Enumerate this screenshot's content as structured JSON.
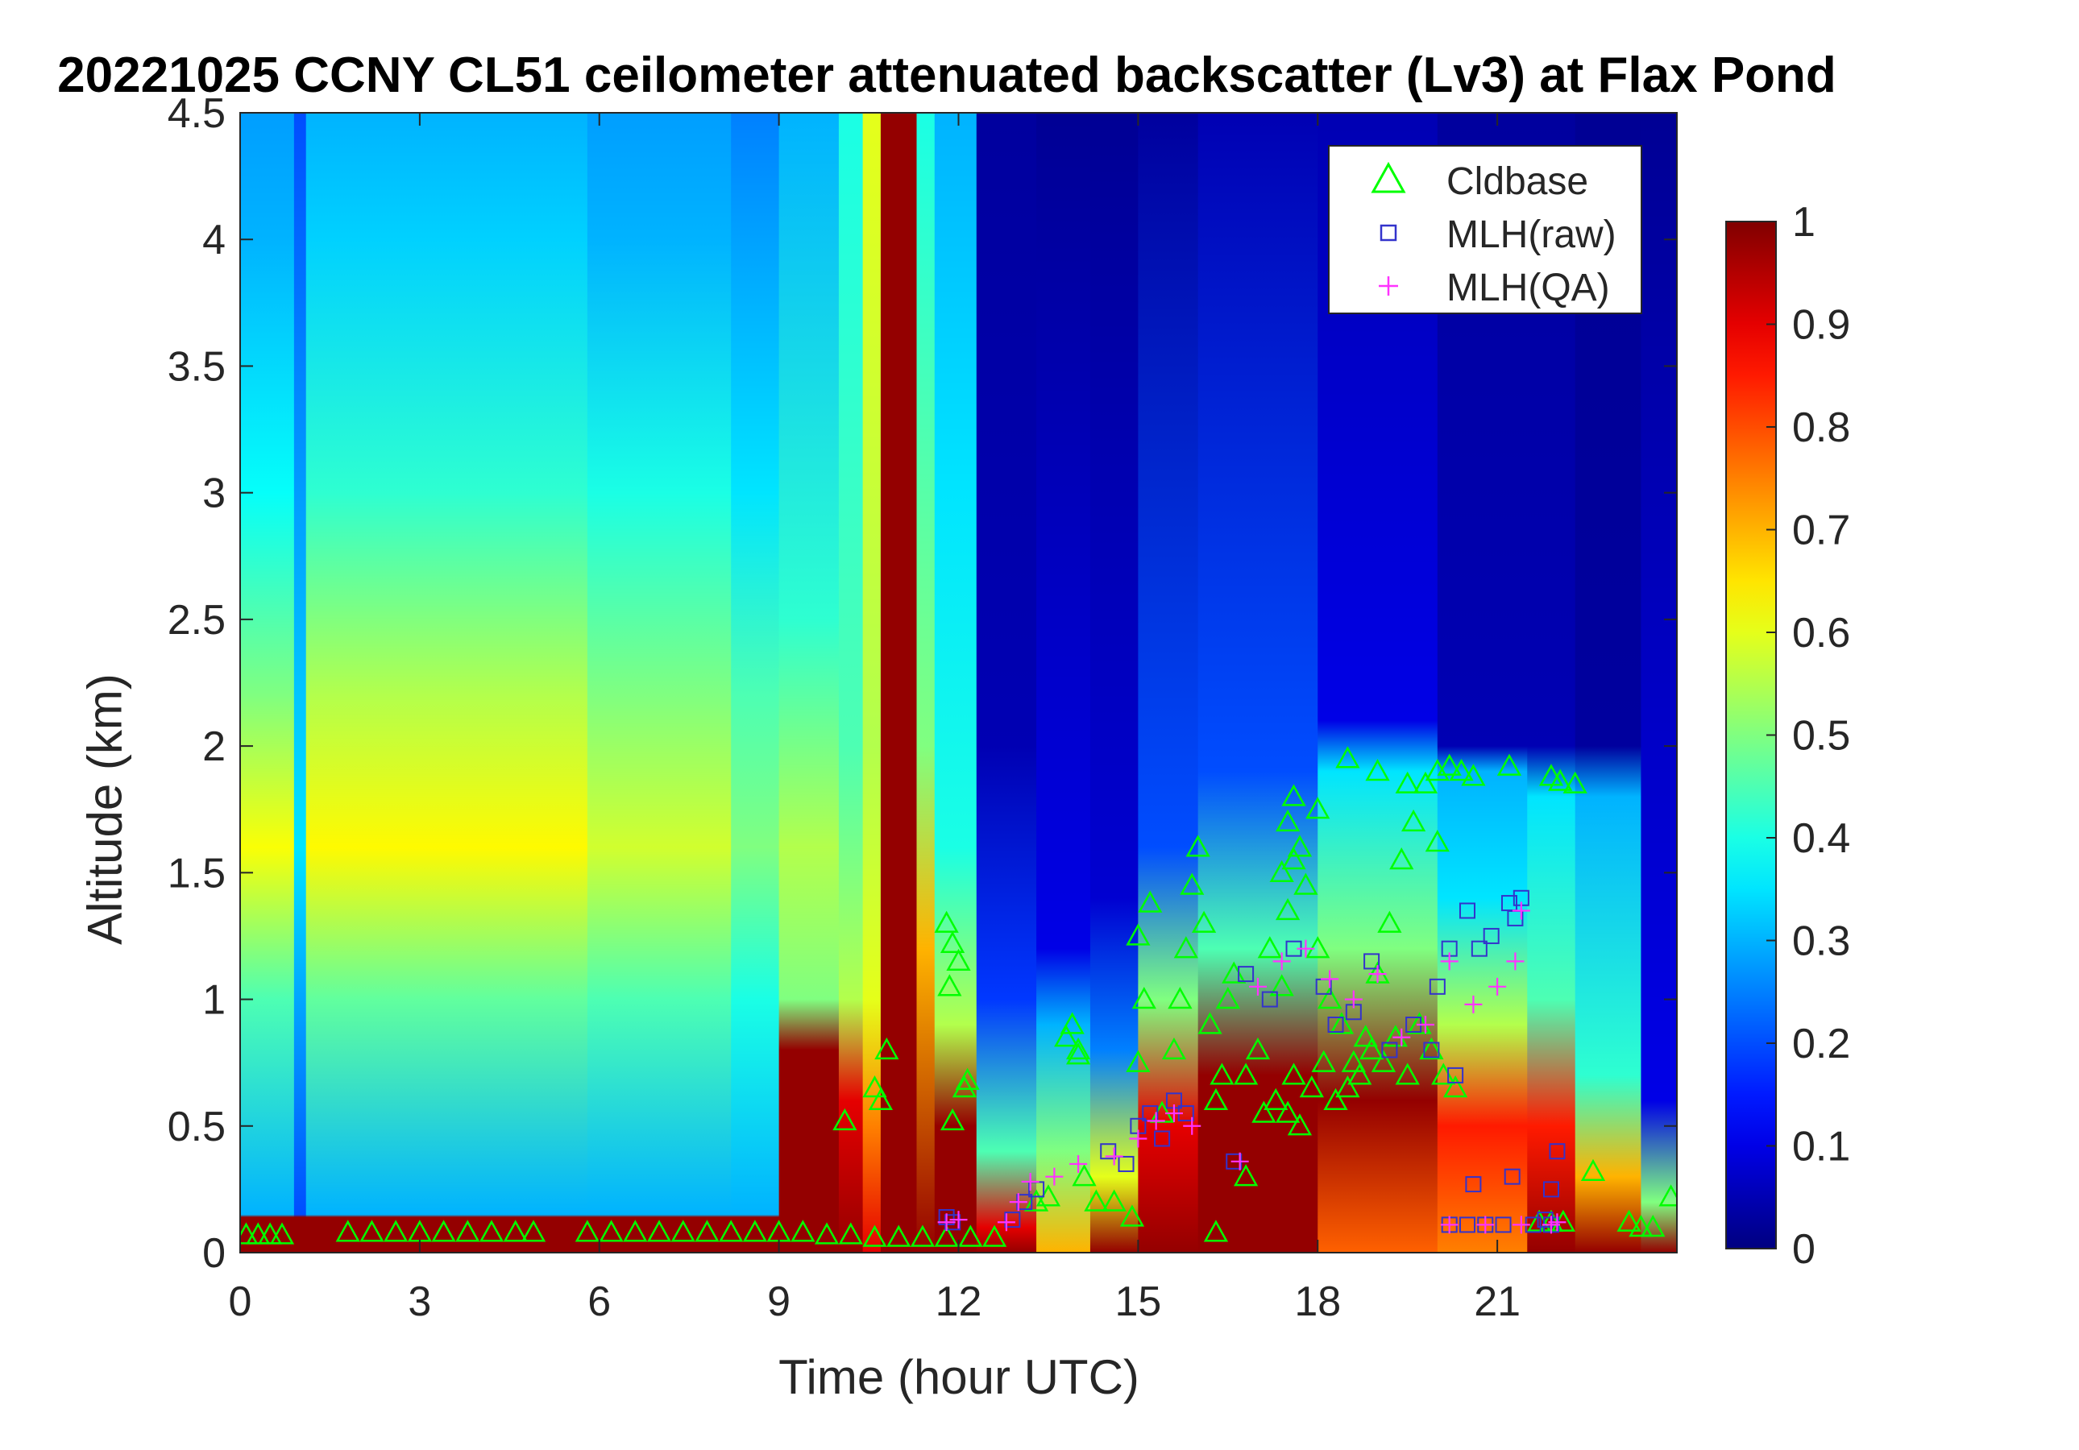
{
  "chart_data": {
    "type": "heatmap",
    "title": "20221025 CCNY CL51 ceilometer attenuated backscatter (Lv3) at Flax Pond",
    "xlabel": "Time (hour UTC)",
    "ylabel": "Altitude (km)",
    "xlim": [
      0,
      24
    ],
    "ylim": [
      0,
      4.5
    ],
    "xticks": [
      0,
      3,
      6,
      9,
      12,
      15,
      18,
      21
    ],
    "xtick_labels": [
      "0",
      "3",
      "6",
      "9",
      "12",
      "15",
      "18",
      "21"
    ],
    "yticks": [
      0,
      0.5,
      1,
      1.5,
      2,
      2.5,
      3,
      3.5,
      4,
      4.5
    ],
    "ytick_labels": [
      "0",
      "0.5",
      "1",
      "1.5",
      "2",
      "2.5",
      "3",
      "3.5",
      "4",
      "4.5"
    ],
    "colorbar": {
      "colormap": "jet",
      "range": [
        0,
        1
      ],
      "ticks": [
        0,
        0.1,
        0.2,
        0.3,
        0.4,
        0.5,
        0.6,
        0.7,
        0.8,
        0.9,
        1
      ],
      "tick_labels": [
        "0",
        "0.1",
        "0.2",
        "0.3",
        "0.4",
        "0.5",
        "0.6",
        "0.7",
        "0.8",
        "0.9",
        "1"
      ]
    },
    "legend": {
      "placement": "top-right",
      "entries": [
        {
          "name": "Cldbase",
          "marker": "triangle",
          "color": "#00ff00"
        },
        {
          "name": "MLH(raw)",
          "marker": "square",
          "color": "#3333cc"
        },
        {
          "name": "MLH(QA)",
          "marker": "plus",
          "color": "#ff33ff"
        }
      ]
    },
    "backscatter_columns": [
      {
        "t0": 0.0,
        "t1": 0.9,
        "profile": [
          [
            0,
            0.98
          ],
          [
            0.14,
            0.98
          ],
          [
            0.15,
            0.3
          ],
          [
            1.0,
            0.45
          ],
          [
            1.6,
            0.62
          ],
          [
            2.2,
            0.5
          ],
          [
            3.0,
            0.38
          ],
          [
            4.0,
            0.3
          ],
          [
            4.5,
            0.28
          ]
        ]
      },
      {
        "t0": 0.9,
        "t1": 1.1,
        "profile": [
          [
            0,
            0.98
          ],
          [
            0.14,
            0.98
          ],
          [
            0.15,
            0.2
          ],
          [
            1.6,
            0.35
          ],
          [
            4.5,
            0.2
          ]
        ]
      },
      {
        "t0": 1.1,
        "t1": 5.8,
        "profile": [
          [
            0,
            0.98
          ],
          [
            0.14,
            0.98
          ],
          [
            0.15,
            0.3
          ],
          [
            1.0,
            0.47
          ],
          [
            1.6,
            0.63
          ],
          [
            2.2,
            0.55
          ],
          [
            3.0,
            0.42
          ],
          [
            4.0,
            0.33
          ],
          [
            4.5,
            0.3
          ]
        ]
      },
      {
        "t0": 5.8,
        "t1": 8.2,
        "profile": [
          [
            0,
            0.98
          ],
          [
            0.14,
            0.98
          ],
          [
            0.15,
            0.3
          ],
          [
            1.0,
            0.45
          ],
          [
            1.6,
            0.58
          ],
          [
            2.2,
            0.5
          ],
          [
            3.0,
            0.4
          ],
          [
            4.0,
            0.3
          ],
          [
            4.5,
            0.28
          ]
        ]
      },
      {
        "t0": 8.2,
        "t1": 9.0,
        "profile": [
          [
            0,
            0.98
          ],
          [
            0.14,
            0.98
          ],
          [
            0.15,
            0.3
          ],
          [
            1.0,
            0.4
          ],
          [
            1.6,
            0.5
          ],
          [
            2.2,
            0.45
          ],
          [
            3.0,
            0.35
          ],
          [
            4.5,
            0.25
          ]
        ]
      },
      {
        "t0": 9.0,
        "t1": 10.0,
        "profile": [
          [
            0,
            0.98
          ],
          [
            0.8,
            0.98
          ],
          [
            1.0,
            0.5
          ],
          [
            1.6,
            0.55
          ],
          [
            2.5,
            0.42
          ],
          [
            4.5,
            0.3
          ]
        ]
      },
      {
        "t0": 10.0,
        "t1": 10.4,
        "profile": [
          [
            0,
            0.98
          ],
          [
            0.6,
            0.9
          ],
          [
            1.0,
            0.55
          ],
          [
            2.0,
            0.45
          ],
          [
            4.5,
            0.4
          ]
        ]
      },
      {
        "t0": 10.4,
        "t1": 10.7,
        "profile": [
          [
            0,
            0.9
          ],
          [
            0.5,
            0.75
          ],
          [
            1.0,
            0.6
          ],
          [
            2.0,
            0.55
          ],
          [
            4.5,
            0.6
          ]
        ]
      },
      {
        "t0": 10.7,
        "t1": 11.3,
        "profile": [
          [
            0,
            0.98
          ],
          [
            4.5,
            0.98
          ]
        ]
      },
      {
        "t0": 11.3,
        "t1": 11.6,
        "profile": [
          [
            0,
            0.98
          ],
          [
            1.2,
            0.7
          ],
          [
            2.0,
            0.5
          ],
          [
            4.5,
            0.4
          ]
        ]
      },
      {
        "t0": 11.6,
        "t1": 12.3,
        "profile": [
          [
            0,
            0.98
          ],
          [
            0.5,
            0.98
          ],
          [
            0.9,
            0.55
          ],
          [
            1.6,
            0.4
          ],
          [
            3.0,
            0.35
          ],
          [
            4.5,
            0.3
          ]
        ]
      },
      {
        "t0": 12.3,
        "t1": 13.3,
        "profile": [
          [
            0,
            0.98
          ],
          [
            0.1,
            0.9
          ],
          [
            0.4,
            0.45
          ],
          [
            1.0,
            0.18
          ],
          [
            2.0,
            0.05
          ],
          [
            4.5,
            0.03
          ]
        ]
      },
      {
        "t0": 13.3,
        "t1": 14.2,
        "profile": [
          [
            0,
            0.7
          ],
          [
            0.4,
            0.5
          ],
          [
            0.9,
            0.3
          ],
          [
            1.2,
            0.1
          ],
          [
            4.5,
            0.02
          ]
        ]
      },
      {
        "t0": 14.2,
        "t1": 15.0,
        "profile": [
          [
            0,
            0.98
          ],
          [
            0.3,
            0.6
          ],
          [
            0.8,
            0.25
          ],
          [
            1.4,
            0.08
          ],
          [
            4.5,
            0.02
          ]
        ]
      },
      {
        "t0": 15.0,
        "t1": 16.0,
        "profile": [
          [
            0,
            0.98
          ],
          [
            0.5,
            0.9
          ],
          [
            1.0,
            0.5
          ],
          [
            1.6,
            0.2
          ],
          [
            4.5,
            0.03
          ]
        ]
      },
      {
        "t0": 16.0,
        "t1": 18.0,
        "profile": [
          [
            0,
            0.98
          ],
          [
            0.7,
            0.98
          ],
          [
            1.2,
            0.45
          ],
          [
            1.9,
            0.2
          ],
          [
            4.5,
            0.05
          ]
        ]
      },
      {
        "t0": 18.0,
        "t1": 20.0,
        "profile": [
          [
            0,
            0.78
          ],
          [
            0.6,
            0.98
          ],
          [
            1.2,
            0.5
          ],
          [
            1.9,
            0.35
          ],
          [
            2.1,
            0.1
          ],
          [
            4.5,
            0.05
          ]
        ]
      },
      {
        "t0": 20.0,
        "t1": 21.5,
        "profile": [
          [
            0,
            0.75
          ],
          [
            0.5,
            0.85
          ],
          [
            0.9,
            0.55
          ],
          [
            1.4,
            0.35
          ],
          [
            1.9,
            0.3
          ],
          [
            2.0,
            0.05
          ],
          [
            4.5,
            0.03
          ]
        ]
      },
      {
        "t0": 21.5,
        "t1": 22.3,
        "profile": [
          [
            0,
            0.98
          ],
          [
            0.5,
            0.85
          ],
          [
            1.0,
            0.45
          ],
          [
            1.8,
            0.35
          ],
          [
            2.0,
            0.05
          ],
          [
            4.5,
            0.03
          ]
        ]
      },
      {
        "t0": 22.3,
        "t1": 23.4,
        "profile": [
          [
            0,
            0.98
          ],
          [
            0.3,
            0.7
          ],
          [
            0.7,
            0.42
          ],
          [
            1.8,
            0.3
          ],
          [
            2.0,
            0.03
          ],
          [
            4.5,
            0.02
          ]
        ]
      },
      {
        "t0": 23.4,
        "t1": 24.0,
        "profile": [
          [
            0,
            0.98
          ],
          [
            0.2,
            0.5
          ],
          [
            0.6,
            0.1
          ],
          [
            4.5,
            0.02
          ]
        ]
      }
    ],
    "series": [
      {
        "name": "Cldbase",
        "marker": "triangle",
        "color": "#00ff00",
        "x": [
          0.1,
          0.3,
          0.5,
          0.7,
          1.8,
          2.2,
          2.6,
          3.0,
          3.4,
          3.8,
          4.2,
          4.6,
          4.9,
          5.8,
          6.2,
          6.6,
          7.0,
          7.4,
          7.8,
          8.2,
          8.6,
          9.0,
          9.4,
          9.8,
          10.2,
          10.6,
          11.0,
          11.4,
          11.8,
          12.2,
          12.6,
          10.1,
          10.6,
          10.7,
          10.8,
          11.8,
          11.9,
          12.0,
          11.85,
          11.9,
          12.1,
          12.15,
          13.3,
          13.5,
          13.8,
          14.0,
          13.9,
          14.0,
          14.1,
          14.3,
          14.6,
          14.9,
          15.0,
          15.1,
          15.0,
          15.2,
          15.4,
          15.6,
          15.7,
          15.8,
          15.9,
          16.0,
          16.1,
          16.2,
          16.3,
          16.4,
          16.5,
          16.6,
          16.8,
          17.0,
          17.2,
          17.4,
          17.5,
          17.6,
          17.7,
          17.8,
          18.0,
          18.2,
          18.4,
          18.6,
          18.8,
          19.0,
          19.2,
          19.4,
          19.6,
          19.8,
          20.0,
          20.2,
          20.4,
          20.6,
          16.3,
          16.8,
          17.1,
          17.3,
          17.5,
          17.6,
          17.7,
          17.9,
          18.1,
          18.3,
          18.5,
          18.7,
          18.9,
          19.1,
          19.3,
          19.5,
          19.7,
          19.9,
          20.1,
          20.3,
          17.4,
          17.5,
          17.6,
          18.0,
          18.5,
          19.0,
          19.5,
          20.0,
          21.2,
          21.9,
          22.05,
          22.3,
          22.6,
          21.7,
          21.9,
          22.1,
          23.2,
          23.4,
          23.6,
          23.9
        ],
        "y": [
          0.07,
          0.07,
          0.07,
          0.07,
          0.08,
          0.08,
          0.08,
          0.08,
          0.08,
          0.08,
          0.08,
          0.08,
          0.08,
          0.08,
          0.08,
          0.08,
          0.08,
          0.08,
          0.08,
          0.08,
          0.08,
          0.08,
          0.08,
          0.07,
          0.07,
          0.06,
          0.06,
          0.06,
          0.06,
          0.06,
          0.06,
          0.52,
          0.65,
          0.6,
          0.8,
          1.3,
          1.22,
          1.15,
          1.05,
          0.52,
          0.65,
          0.68,
          0.2,
          0.22,
          0.85,
          0.78,
          0.9,
          0.8,
          0.3,
          0.2,
          0.2,
          0.14,
          0.75,
          1.0,
          1.25,
          1.38,
          0.55,
          0.8,
          1.0,
          1.2,
          1.45,
          1.6,
          1.3,
          0.9,
          0.6,
          0.7,
          1.0,
          1.1,
          0.7,
          0.8,
          1.2,
          1.5,
          1.7,
          1.8,
          1.6,
          1.45,
          1.2,
          1.0,
          0.9,
          0.75,
          0.85,
          1.1,
          1.3,
          1.55,
          1.7,
          1.85,
          1.9,
          1.92,
          1.9,
          1.88,
          0.08,
          0.3,
          0.55,
          0.6,
          0.55,
          0.7,
          0.5,
          0.65,
          0.75,
          0.6,
          0.65,
          0.7,
          0.8,
          0.75,
          0.85,
          0.7,
          0.9,
          0.8,
          0.7,
          0.65,
          1.05,
          1.35,
          1.55,
          1.75,
          1.95,
          1.9,
          1.85,
          1.62,
          1.92,
          1.88,
          1.86,
          1.85,
          0.32,
          0.12,
          0.12,
          0.12,
          0.12,
          0.1,
          0.1,
          0.22
        ]
      },
      {
        "name": "MLH(raw)",
        "marker": "square",
        "color": "#3333cc",
        "x": [
          11.8,
          11.9,
          12.9,
          13.1,
          13.3,
          14.5,
          14.8,
          15.0,
          15.2,
          15.4,
          15.6,
          15.8,
          16.6,
          16.8,
          17.2,
          17.6,
          18.1,
          18.3,
          18.6,
          18.9,
          19.2,
          19.6,
          20.0,
          20.2,
          20.5,
          20.7,
          20.9,
          21.2,
          21.3,
          21.4,
          20.2,
          20.5,
          20.8,
          21.1,
          21.6,
          21.9,
          22.0,
          21.9,
          21.8,
          21.25,
          20.6,
          19.9,
          20.3
        ],
        "y": [
          0.14,
          0.12,
          0.13,
          0.2,
          0.25,
          0.4,
          0.35,
          0.5,
          0.55,
          0.45,
          0.6,
          0.55,
          0.36,
          1.1,
          1.0,
          1.2,
          1.05,
          0.9,
          0.95,
          1.15,
          0.8,
          0.9,
          1.05,
          1.2,
          1.35,
          1.2,
          1.25,
          1.38,
          1.32,
          1.4,
          0.11,
          0.11,
          0.11,
          0.11,
          0.11,
          0.11,
          0.4,
          0.25,
          0.13,
          0.3,
          0.27,
          0.8,
          0.7
        ]
      },
      {
        "name": "MLH(QA)",
        "marker": "plus",
        "color": "#ff33ff",
        "x": [
          11.8,
          12.0,
          12.8,
          13.0,
          13.2,
          13.6,
          14.0,
          14.6,
          15.0,
          15.3,
          15.6,
          15.9,
          16.7,
          17.0,
          17.4,
          17.8,
          18.2,
          18.6,
          19.0,
          19.4,
          19.8,
          20.2,
          20.6,
          21.0,
          21.3,
          21.4,
          20.2,
          20.8,
          21.4,
          21.9,
          22.0
        ],
        "y": [
          0.12,
          0.13,
          0.12,
          0.2,
          0.28,
          0.3,
          0.35,
          0.38,
          0.45,
          0.52,
          0.55,
          0.5,
          0.36,
          1.05,
          1.15,
          1.2,
          1.08,
          1.0,
          1.1,
          0.85,
          0.9,
          1.15,
          0.98,
          1.05,
          1.15,
          1.35,
          0.11,
          0.11,
          0.11,
          0.11,
          0.12
        ]
      }
    ]
  }
}
